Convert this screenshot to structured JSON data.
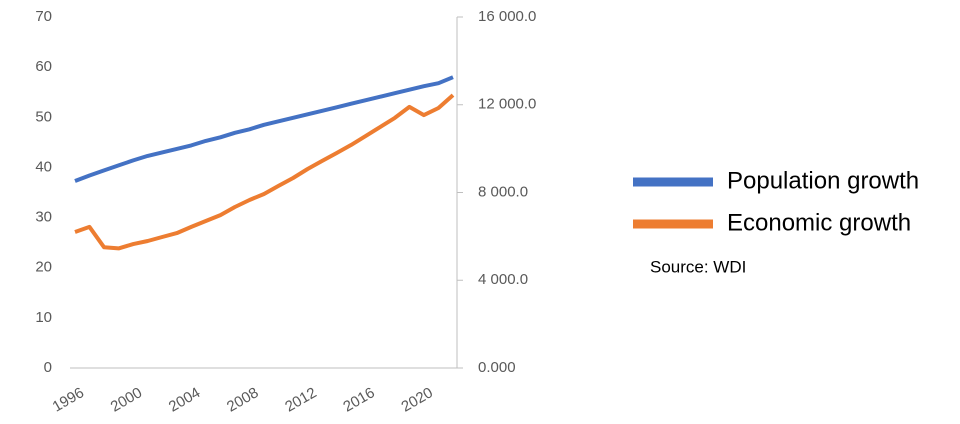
{
  "chart_data": {
    "type": "line",
    "x": [
      1996,
      1997,
      1998,
      1999,
      2000,
      2001,
      2002,
      2003,
      2004,
      2005,
      2006,
      2007,
      2008,
      2009,
      2010,
      2011,
      2012,
      2013,
      2014,
      2015,
      2016,
      2017,
      2018,
      2019,
      2020,
      2021,
      2022
    ],
    "xlim": [
      1996,
      2022
    ],
    "xticks": [
      1996,
      2000,
      2004,
      2008,
      2012,
      2016,
      2020
    ],
    "ylim": [
      0,
      70
    ],
    "yticks": [
      0,
      10,
      20,
      30,
      40,
      50,
      60,
      70
    ],
    "y2lim": [
      0,
      16000
    ],
    "y2ticks": [
      {
        "value": 0,
        "label": "0.000"
      },
      {
        "value": 4000,
        "label": "4 000.0"
      },
      {
        "value": 8000,
        "label": "8 000.0"
      },
      {
        "value": 12000,
        "label": "12 000.0"
      },
      {
        "value": 16000,
        "label": "16 000.0"
      }
    ],
    "series": [
      {
        "name": "Population growth",
        "color": "#4472c4",
        "values": [
          37.3,
          38.4,
          39.4,
          40.4,
          41.4,
          42.3,
          43.0,
          43.7,
          44.4,
          45.3,
          46.0,
          46.9,
          47.6,
          48.5,
          49.2,
          49.9,
          50.6,
          51.3,
          52.0,
          52.7,
          53.4,
          54.1,
          54.8,
          55.5,
          56.2,
          56.8,
          58.0
        ]
      },
      {
        "name": "Economic growth",
        "color": "#ed7d31",
        "axis": "y2",
        "values": [
          6200,
          6430,
          5500,
          5450,
          5650,
          5790,
          5970,
          6150,
          6430,
          6700,
          6970,
          7340,
          7660,
          7930,
          8300,
          8660,
          9070,
          9440,
          9800,
          10170,
          10580,
          10990,
          11400,
          11900,
          11530,
          11850,
          12440
        ]
      }
    ],
    "annotations": [
      "Source: WDI"
    ]
  }
}
